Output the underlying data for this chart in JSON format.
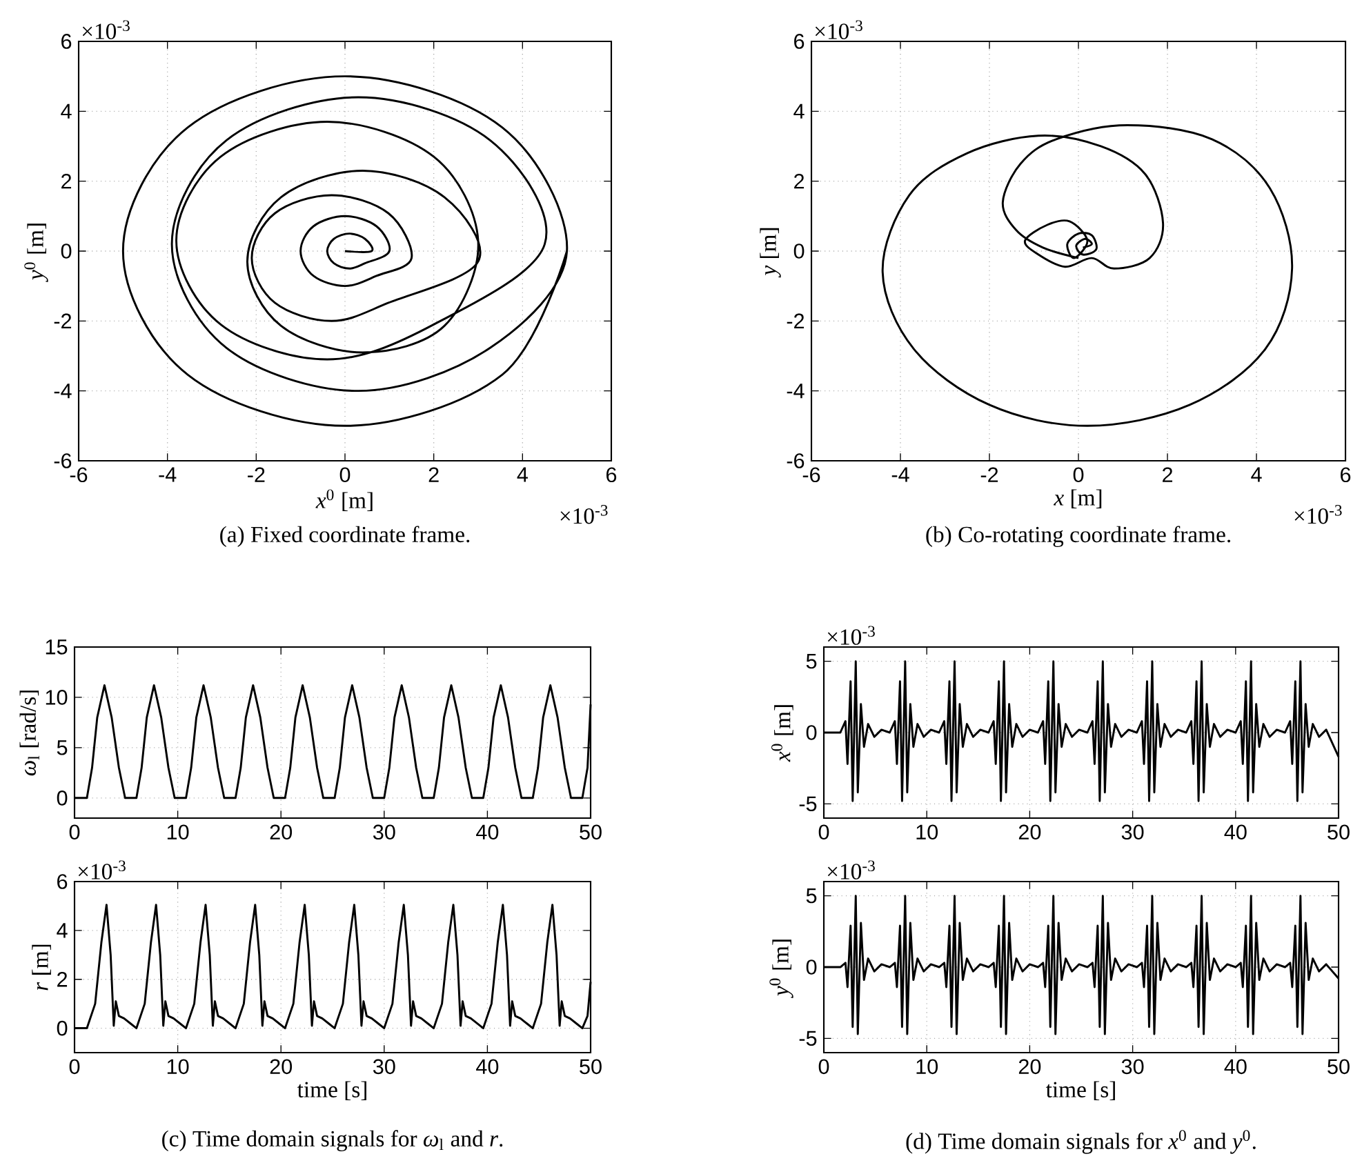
{
  "chart_data": [
    {
      "type": "line",
      "xlabel": "*x*$^{0}$ [m]",
      "ylabel": "*y*$^{0}$ [m]",
      "annotations": [
        "×10$^{-3}$",
        "×10$^{-3}$",
        "(a)  Fixed coordinate frame."
      ],
      "color": "#000000",
      "grid": true,
      "xlim": [
        -6,
        6
      ],
      "ylim": [
        -6,
        6
      ],
      "xticks": [
        -6,
        -4,
        -2,
        0,
        2,
        4,
        6
      ],
      "yticks": [
        -6,
        -4,
        -2,
        0,
        2,
        4,
        6
      ],
      "x": [
        0,
        0.6,
        0.45,
        0.1,
        -0.25,
        -0.4,
        -0.25,
        0.1,
        0.45,
        1,
        0.71,
        0,
        -0.71,
        -1,
        -0.71,
        0,
        0.71,
        1.5,
        0.98,
        -0.3,
        -1.58,
        -2.1,
        -1.58,
        -0.3,
        0.98,
        3,
        2.24,
        0.4,
        -1.44,
        -2.2,
        -1.44,
        0.4,
        2.24,
        3,
        2.0,
        -0.4,
        -2.8,
        -3.8,
        -2.8,
        -0.4,
        2.0,
        4.5,
        3.27,
        0.3,
        -2.67,
        -3.9,
        -2.67,
        0.3,
        3.27,
        5,
        3.54,
        0,
        -3.54,
        -5,
        -3.54,
        0,
        3.54,
        5
      ],
      "values": [
        0,
        0,
        0.35,
        0.5,
        0.35,
        0,
        -0.35,
        -0.5,
        -0.35,
        0,
        0.71,
        1,
        0.71,
        0,
        -0.71,
        -1,
        -0.71,
        -0.2,
        1.08,
        1.6,
        1.08,
        -0.2,
        -1.48,
        -2.0,
        -1.48,
        -0.3,
        1.54,
        2.3,
        1.54,
        -0.3,
        -2.14,
        -2.9,
        -2.14,
        0.3,
        2.7,
        3.7,
        2.7,
        0.3,
        -2.1,
        -3.1,
        -2.1,
        0.2,
        3.17,
        4.4,
        3.17,
        0.2,
        -2.77,
        -4,
        -2.77,
        0,
        3.54,
        5,
        3.54,
        0,
        -3.54,
        -5,
        -3.54,
        0
      ]
    },
    {
      "type": "line",
      "xlabel": "*x* [m]",
      "ylabel": "*y* [m]",
      "annotations": [
        "×10$^{-3}$",
        "×10$^{-3}$",
        "(b)  Co-rotating coordinate frame."
      ],
      "color": "#000000",
      "grid": true,
      "xlim": [
        -6,
        6
      ],
      "ylim": [
        -6,
        6
      ],
      "xticks": [
        -6,
        -4,
        -2,
        0,
        2,
        4,
        6
      ],
      "yticks": [
        -6,
        -4,
        -2,
        0,
        2,
        4,
        6
      ],
      "x": [
        0.1,
        0.3,
        0.15,
        -0.05,
        0.1,
        0.4,
        0.3,
        0,
        -0.25,
        -0.1,
        0.2,
        -0.2,
        -0.7,
        -1.2,
        -0.9,
        -0.3,
        0.3,
        0.8,
        1.6,
        1.9,
        1.5,
        0.5,
        -0.9,
        -2.5,
        -3.8,
        -4.4,
        -3.7,
        -2,
        0.2,
        2.5,
        4.2,
        4.8,
        4.3,
        3,
        1.1,
        -0.5,
        -1.3,
        -1.7,
        -1.4,
        -0.8,
        0
      ],
      "values": [
        0.1,
        0.2,
        0.35,
        0.15,
        -0.1,
        0.05,
        0.45,
        0.5,
        0.2,
        -0.2,
        0.3,
        0.85,
        0.75,
        0.3,
        -0.1,
        -0.45,
        -0.2,
        -0.5,
        -0.2,
        0.8,
        2.2,
        3.0,
        3.3,
        2.8,
        1.6,
        -0.6,
        -2.8,
        -4.4,
        -5,
        -4.4,
        -2.8,
        -0.5,
        1.8,
        3.2,
        3.6,
        3.2,
        2.5,
        1.4,
        0.6,
        0.1,
        -0.2
      ]
    },
    {
      "type": "line",
      "ylabel": "*ω*$_{l}$ [rad/s]",
      "color": "#000000",
      "grid": true,
      "xlim": [
        0,
        50
      ],
      "ylim": [
        -2,
        15
      ],
      "xticks": [
        0,
        10,
        20,
        30,
        40,
        50
      ],
      "yticks": [
        0,
        5,
        10,
        15
      ],
      "x": [
        0,
        1.2,
        1.7,
        2.2,
        2.9,
        3.6,
        4.3,
        4.9,
        6.0,
        6.5,
        7.0,
        7.7,
        8.4,
        9.1,
        9.7,
        10.8,
        11.3,
        11.8,
        12.5,
        13.2,
        13.9,
        14.5,
        15.6,
        16.1,
        16.6,
        17.3,
        18.0,
        18.7,
        19.3,
        20.4,
        20.9,
        21.4,
        22.1,
        22.8,
        23.5,
        24.1,
        25.2,
        25.7,
        26.2,
        26.9,
        27.6,
        28.3,
        28.9,
        30.0,
        30.5,
        31.0,
        31.7,
        32.4,
        33.1,
        33.7,
        34.8,
        35.3,
        35.8,
        36.5,
        37.2,
        37.9,
        38.5,
        39.6,
        40.1,
        40.6,
        41.3,
        42.0,
        42.7,
        43.3,
        44.4,
        44.9,
        45.4,
        46.1,
        46.8,
        47.5,
        48.1,
        49.2,
        49.7,
        50
      ],
      "values": [
        0,
        0,
        3,
        8,
        11.2,
        8,
        3,
        0,
        0,
        3,
        8,
        11.2,
        8,
        3,
        0,
        0,
        3,
        8,
        11.2,
        8,
        3,
        0,
        0,
        3,
        8,
        11.2,
        8,
        3,
        0,
        0,
        3,
        8,
        11.2,
        8,
        3,
        0,
        0,
        3,
        8,
        11.2,
        8,
        3,
        0,
        0,
        3,
        8,
        11.2,
        8,
        3,
        0,
        0,
        3,
        8,
        11.2,
        8,
        3,
        0,
        0,
        3,
        8,
        11.2,
        8,
        3,
        0,
        0,
        3,
        8,
        11.2,
        8,
        3,
        0,
        0,
        3,
        9.3
      ]
    },
    {
      "type": "line",
      "xlabel": "time [s]",
      "ylabel": "*r* [m]",
      "annotations": [
        "×10$^{-3}$",
        "(c)  Time domain signals for *ω*$_{l}$ and *r*."
      ],
      "color": "#000000",
      "grid": true,
      "xlim": [
        0,
        50
      ],
      "ylim": [
        -1,
        6
      ],
      "xticks": [
        0,
        10,
        20,
        30,
        40,
        50
      ],
      "yticks": [
        0,
        2,
        4,
        6
      ],
      "x": [
        0,
        1.2,
        2.0,
        2.6,
        3.1,
        3.5,
        3.8,
        4.0,
        4.3,
        4.8,
        5.4,
        6.0,
        6.8,
        7.4,
        7.9,
        8.3,
        8.6,
        8.8,
        9.1,
        9.6,
        10.2,
        10.8,
        11.6,
        12.2,
        12.7,
        13.1,
        13.4,
        13.6,
        13.9,
        14.4,
        15.0,
        15.6,
        16.4,
        17.0,
        17.5,
        17.9,
        18.2,
        18.4,
        18.7,
        19.2,
        19.8,
        20.4,
        21.2,
        21.8,
        22.3,
        22.7,
        23.0,
        23.2,
        23.5,
        24.0,
        24.6,
        25.2,
        26.0,
        26.6,
        27.1,
        27.5,
        27.8,
        28.0,
        28.3,
        28.8,
        29.4,
        30.0,
        30.8,
        31.4,
        31.9,
        32.3,
        32.6,
        32.8,
        33.1,
        33.6,
        34.2,
        34.8,
        35.6,
        36.2,
        36.7,
        37.1,
        37.4,
        37.6,
        37.9,
        38.4,
        39.0,
        39.6,
        40.4,
        41.0,
        41.5,
        41.9,
        42.2,
        42.4,
        42.7,
        43.2,
        43.8,
        44.4,
        45.2,
        45.8,
        46.3,
        46.7,
        47.0,
        47.2,
        47.5,
        48.0,
        48.6,
        49.2,
        49.7,
        50
      ],
      "values": [
        0,
        0,
        1,
        3.5,
        5.05,
        3,
        0.1,
        1.1,
        0.5,
        0.4,
        0.2,
        0,
        1,
        3.5,
        5.05,
        3,
        0.1,
        1.1,
        0.5,
        0.4,
        0.2,
        0,
        1,
        3.5,
        5.05,
        3,
        0.1,
        1.1,
        0.5,
        0.4,
        0.2,
        0,
        1,
        3.5,
        5.05,
        3,
        0.1,
        1.1,
        0.5,
        0.4,
        0.2,
        0,
        1,
        3.5,
        5.05,
        3,
        0.1,
        1.1,
        0.5,
        0.4,
        0.2,
        0,
        1,
        3.5,
        5.05,
        3,
        0.1,
        1.1,
        0.5,
        0.4,
        0.2,
        0,
        1,
        3.5,
        5.05,
        3,
        0.1,
        1.1,
        0.5,
        0.4,
        0.2,
        0,
        1,
        3.5,
        5.05,
        3,
        0.1,
        1.1,
        0.5,
        0.4,
        0.2,
        0,
        1,
        3.5,
        5.05,
        3,
        0.1,
        1.1,
        0.5,
        0.4,
        0.2,
        0,
        1,
        3.5,
        5.05,
        3,
        0.1,
        1.1,
        0.5,
        0.4,
        0.2,
        0,
        0.5,
        1.9
      ]
    },
    {
      "type": "line",
      "ylabel": "*x*$^{0}$ [m]",
      "annotations": [
        "×10$^{-3}$"
      ],
      "color": "#000000",
      "grid": true,
      "xlim": [
        0,
        50
      ],
      "ylim": [
        -6,
        6
      ],
      "xticks": [
        0,
        10,
        20,
        30,
        40,
        50
      ],
      "yticks": [
        -5,
        0,
        5
      ],
      "x": [
        0,
        1.6,
        2.1,
        2.3,
        2.6,
        2.8,
        3.1,
        3.3,
        3.6,
        3.9,
        4.3,
        4.9,
        5.6,
        6.4,
        6.9,
        7.1,
        7.4,
        7.6,
        7.9,
        8.1,
        8.4,
        8.7,
        9.1,
        9.7,
        10.4,
        11.2,
        11.7,
        11.9,
        12.2,
        12.4,
        12.7,
        12.9,
        13.2,
        13.5,
        13.9,
        14.5,
        15.2,
        16.0,
        16.5,
        16.7,
        17.0,
        17.2,
        17.5,
        17.7,
        18.0,
        18.3,
        18.7,
        19.3,
        20.0,
        20.8,
        21.3,
        21.5,
        21.8,
        22.0,
        22.3,
        22.5,
        22.8,
        23.1,
        23.5,
        24.1,
        24.8,
        25.6,
        26.1,
        26.3,
        26.6,
        26.8,
        27.1,
        27.3,
        27.6,
        27.9,
        28.3,
        28.9,
        29.6,
        30.4,
        30.9,
        31.1,
        31.4,
        31.6,
        31.9,
        32.1,
        32.4,
        32.7,
        33.1,
        33.7,
        34.4,
        35.2,
        35.7,
        35.9,
        36.2,
        36.4,
        36.7,
        36.9,
        37.2,
        37.5,
        37.9,
        38.5,
        39.2,
        40.0,
        40.5,
        40.7,
        41.0,
        41.2,
        41.5,
        41.7,
        42.0,
        42.3,
        42.7,
        43.3,
        44.0,
        44.8,
        45.3,
        45.5,
        45.8,
        46.0,
        46.3,
        46.5,
        46.8,
        47.1,
        47.5,
        48.1,
        48.8,
        50
      ],
      "values": [
        0,
        0,
        0.8,
        -2.2,
        3.6,
        -4.8,
        5.0,
        -4.2,
        2.0,
        -1.0,
        0.6,
        -0.3,
        0.2,
        0,
        0.8,
        -2.2,
        3.6,
        -4.8,
        5.0,
        -4.2,
        2.0,
        -1.0,
        0.6,
        -0.3,
        0.2,
        0,
        0.8,
        -2.2,
        3.6,
        -4.8,
        5.0,
        -4.2,
        2.0,
        -1.0,
        0.6,
        -0.3,
        0.2,
        0,
        0.8,
        -2.2,
        3.6,
        -4.8,
        5.0,
        -4.2,
        2.0,
        -1.0,
        0.6,
        -0.3,
        0.2,
        0,
        0.8,
        -2.2,
        3.6,
        -4.8,
        5.0,
        -4.2,
        2.0,
        -1.0,
        0.6,
        -0.3,
        0.2,
        0,
        0.8,
        -2.2,
        3.6,
        -4.8,
        5.0,
        -4.2,
        2.0,
        -1.0,
        0.6,
        -0.3,
        0.2,
        0,
        0.8,
        -2.2,
        3.6,
        -4.8,
        5.0,
        -4.2,
        2.0,
        -1.0,
        0.6,
        -0.3,
        0.2,
        0,
        0.8,
        -2.2,
        3.6,
        -4.8,
        5.0,
        -4.2,
        2.0,
        -1.0,
        0.6,
        -0.3,
        0.2,
        0,
        0.8,
        -2.2,
        3.6,
        -4.8,
        5.0,
        -4.2,
        2.0,
        -1.0,
        0.6,
        -0.3,
        0.2,
        0,
        0.8,
        -2.2,
        3.6,
        -4.8,
        5.0,
        -4.2,
        2.0,
        -1.0,
        0.6,
        -0.3,
        0.2,
        -1.7
      ]
    },
    {
      "type": "line",
      "xlabel": "time [s]",
      "ylabel": "*y*$^{0}$ [m]",
      "annotations": [
        "×10$^{-3}$",
        "(d)  Time domain signals for *x*$^{0}$ and *y*$^{0}$."
      ],
      "color": "#000000",
      "grid": true,
      "xlim": [
        0,
        50
      ],
      "ylim": [
        -6,
        6
      ],
      "xticks": [
        0,
        10,
        20,
        30,
        40,
        50
      ],
      "yticks": [
        -5,
        0,
        5
      ],
      "x": [
        0,
        1.6,
        2.1,
        2.3,
        2.6,
        2.8,
        3.1,
        3.3,
        3.6,
        3.9,
        4.3,
        4.9,
        5.6,
        6.4,
        6.9,
        7.1,
        7.4,
        7.6,
        7.9,
        8.1,
        8.4,
        8.7,
        9.1,
        9.7,
        10.4,
        11.2,
        11.7,
        11.9,
        12.2,
        12.4,
        12.7,
        12.9,
        13.2,
        13.5,
        13.9,
        14.5,
        15.2,
        16.0,
        16.5,
        16.7,
        17.0,
        17.2,
        17.5,
        17.7,
        18.0,
        18.3,
        18.7,
        19.3,
        20.0,
        20.8,
        21.3,
        21.5,
        21.8,
        22.0,
        22.3,
        22.5,
        22.8,
        23.1,
        23.5,
        24.1,
        24.8,
        25.6,
        26.1,
        26.3,
        26.6,
        26.8,
        27.1,
        27.3,
        27.6,
        27.9,
        28.3,
        28.9,
        29.6,
        30.4,
        30.9,
        31.1,
        31.4,
        31.6,
        31.9,
        32.1,
        32.4,
        32.7,
        33.1,
        33.7,
        34.4,
        35.2,
        35.7,
        35.9,
        36.2,
        36.4,
        36.7,
        36.9,
        37.2,
        37.5,
        37.9,
        38.5,
        39.2,
        40.0,
        40.5,
        40.7,
        41.0,
        41.2,
        41.5,
        41.7,
        42.0,
        42.3,
        42.7,
        43.3,
        44.0,
        44.8,
        45.3,
        45.5,
        45.8,
        46.0,
        46.3,
        46.5,
        46.8,
        47.1,
        47.5,
        48.1,
        48.8,
        50
      ],
      "values": [
        0,
        0,
        0.3,
        -1.4,
        2.9,
        -4.2,
        5.0,
        -4.7,
        3.1,
        -0.9,
        0.6,
        -0.3,
        0.2,
        0,
        0.3,
        -1.4,
        2.9,
        -4.2,
        5.0,
        -4.7,
        3.1,
        -0.9,
        0.6,
        -0.3,
        0.2,
        0,
        0.3,
        -1.4,
        2.9,
        -4.2,
        5.0,
        -4.7,
        3.1,
        -0.9,
        0.6,
        -0.3,
        0.2,
        0,
        0.3,
        -1.4,
        2.9,
        -4.2,
        5.0,
        -4.7,
        3.1,
        -0.9,
        0.6,
        -0.3,
        0.2,
        0,
        0.3,
        -1.4,
        2.9,
        -4.2,
        5.0,
        -4.7,
        3.1,
        -0.9,
        0.6,
        -0.3,
        0.2,
        0,
        0.3,
        -1.4,
        2.9,
        -4.2,
        5.0,
        -4.7,
        3.1,
        -0.9,
        0.6,
        -0.3,
        0.2,
        0,
        0.3,
        -1.4,
        2.9,
        -4.2,
        5.0,
        -4.7,
        3.1,
        -0.9,
        0.6,
        -0.3,
        0.2,
        0,
        0.3,
        -1.4,
        2.9,
        -4.2,
        5.0,
        -4.7,
        3.1,
        -0.9,
        0.6,
        -0.3,
        0.2,
        0,
        0.3,
        -1.4,
        2.9,
        -4.2,
        5.0,
        -4.7,
        3.1,
        -0.9,
        0.6,
        -0.3,
        0.2,
        0,
        0.3,
        -1.4,
        2.9,
        -4.2,
        5.0,
        -4.7,
        3.1,
        -0.9,
        0.6,
        -0.3,
        0.2,
        -0.8
      ]
    }
  ]
}
